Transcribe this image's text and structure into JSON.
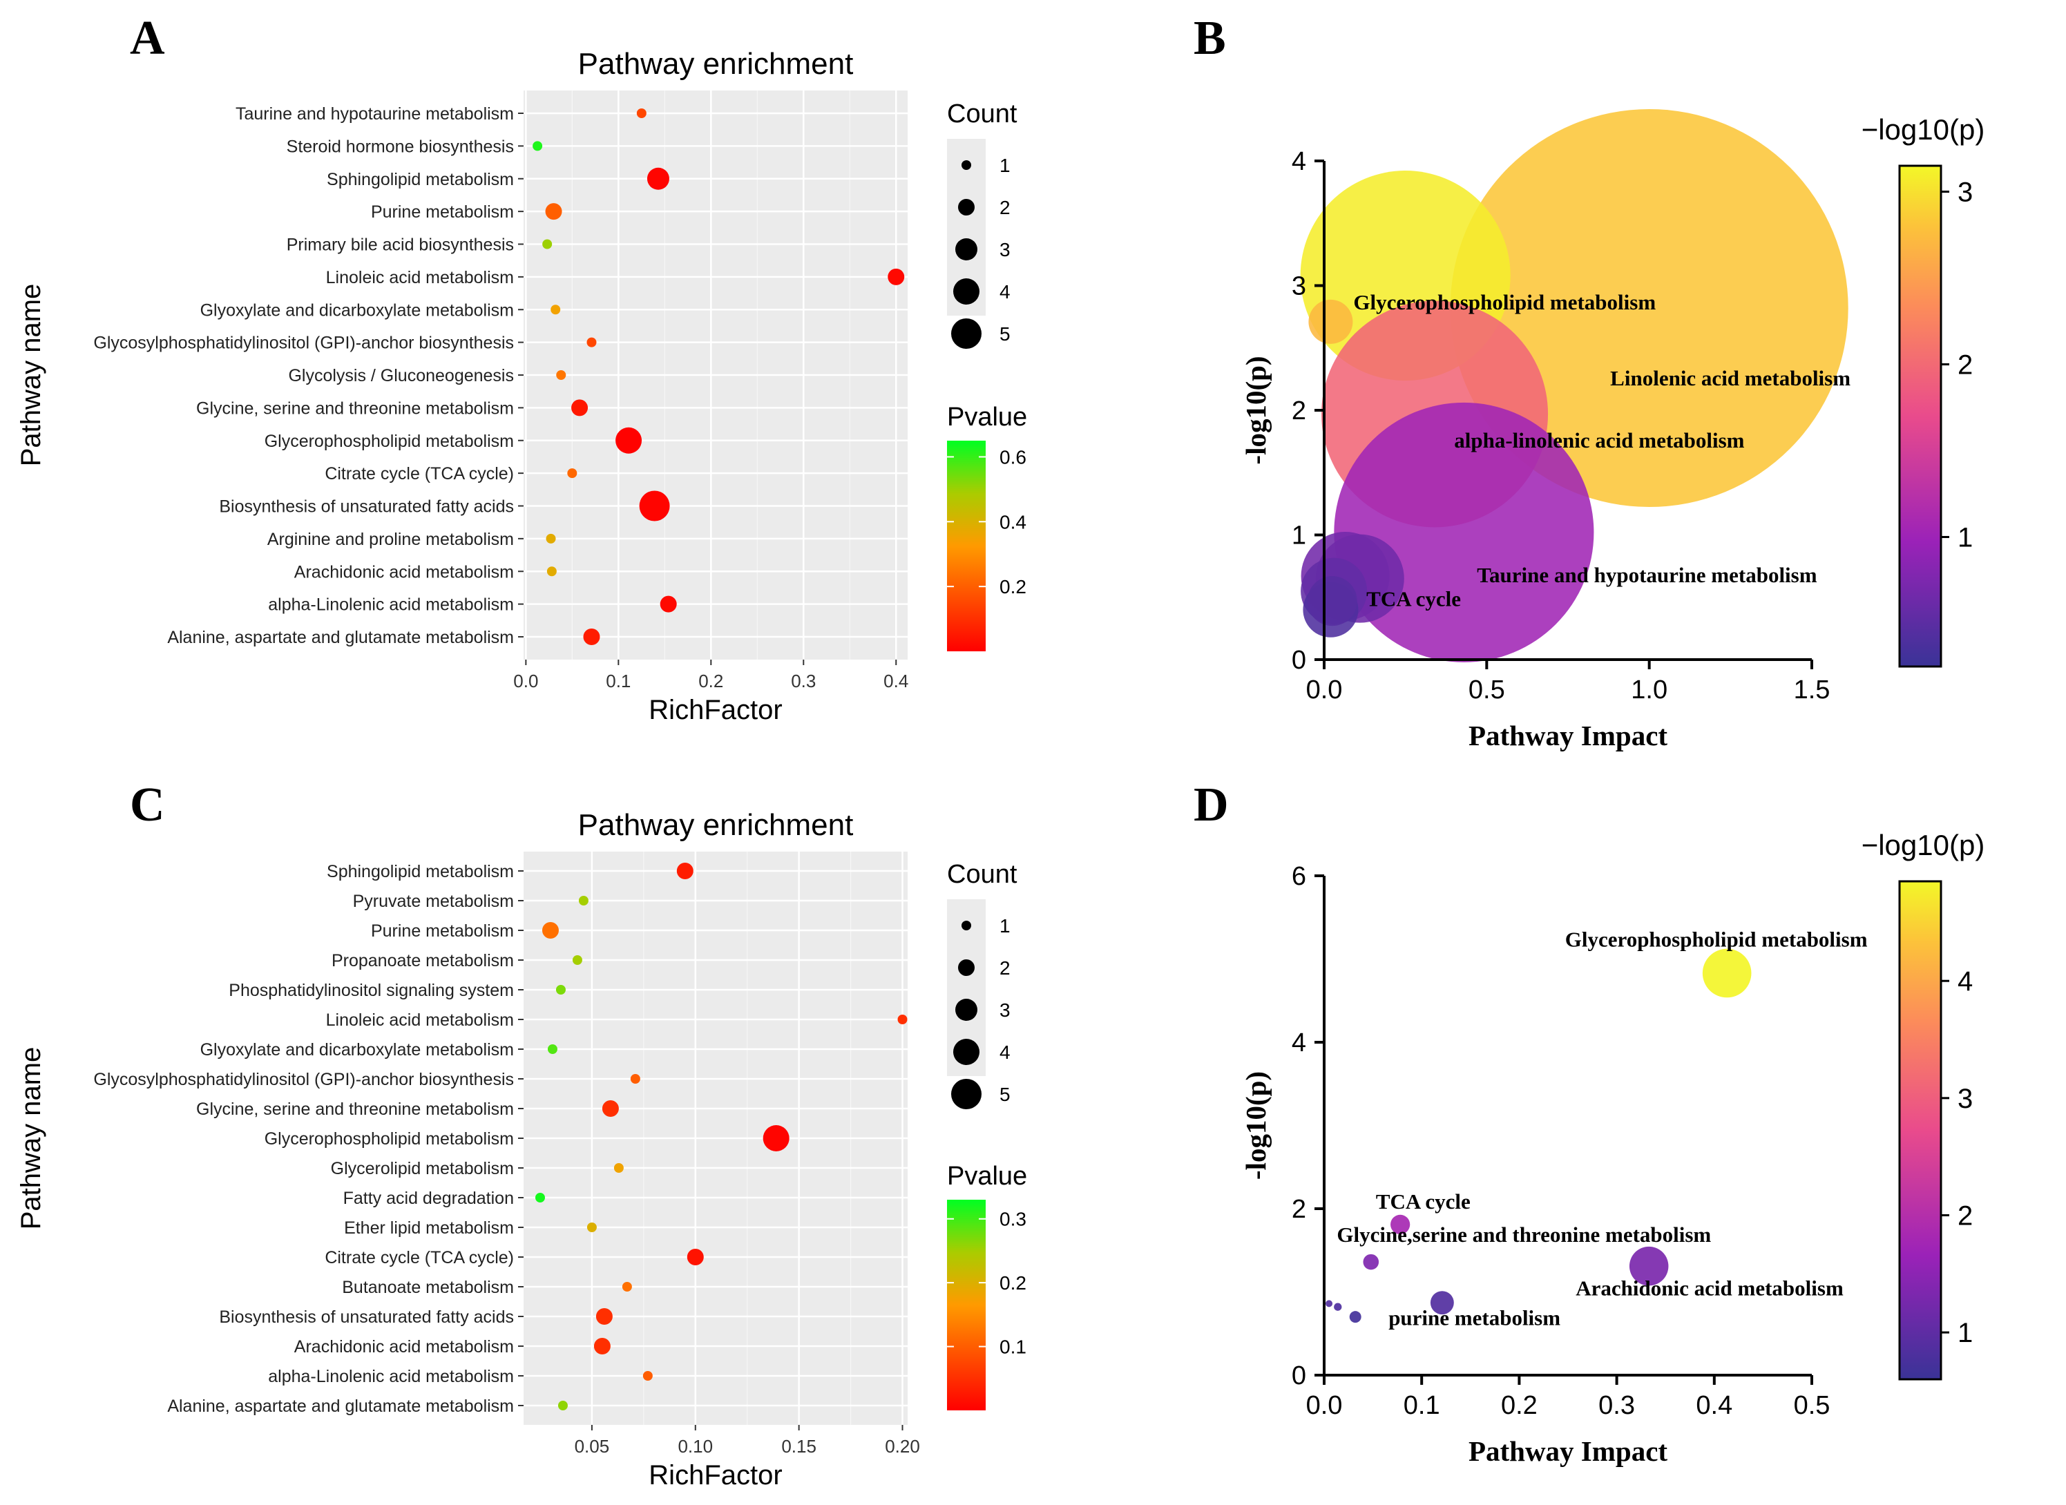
{
  "chart_data": [
    {
      "panel": "A",
      "type": "scatter",
      "title": "Pathway enrichment",
      "xlabel": "RichFactor",
      "ylabel": "Pathway name",
      "xlim": [
        -0.0025,
        0.4125
      ],
      "xticks": [
        0.0,
        0.1,
        0.2,
        0.3,
        0.4
      ],
      "xtick_labels": [
        "0.0",
        "0.1",
        "0.2",
        "0.3",
        "0.4"
      ],
      "size_legend": {
        "title": "Count",
        "values": [
          1,
          2,
          3,
          4,
          5
        ]
      },
      "color_legend": {
        "title": "Pvalue",
        "range": [
          0.0,
          0.65
        ],
        "ticks": [
          0.2,
          0.4,
          0.6
        ],
        "tick_labels": [
          "0.2",
          "0.4",
          "0.6"
        ],
        "low_color": "#ff0000",
        "high_color": "#00ff00"
      },
      "points": [
        {
          "name": "Taurine and hypotaurine metabolism",
          "x": 0.125,
          "count": 1,
          "p": 0.15
        },
        {
          "name": "Steroid hormone biosynthesis",
          "x": 0.0125,
          "count": 1,
          "p": 0.62
        },
        {
          "name": "Sphingolipid metabolism",
          "x": 0.143,
          "count": 3,
          "p": 0.01
        },
        {
          "name": "Purine metabolism",
          "x": 0.03,
          "count": 2,
          "p": 0.2
        },
        {
          "name": "Primary bile acid biosynthesis",
          "x": 0.023,
          "count": 1,
          "p": 0.5
        },
        {
          "name": "Linoleic acid metabolism",
          "x": 0.4,
          "count": 2,
          "p": 0.02
        },
        {
          "name": "Glyoxylate and dicarboxylate metabolism",
          "x": 0.032,
          "count": 1,
          "p": 0.35
        },
        {
          "name": "Glycosylphosphatidylinositol (GPI)-anchor biosynthesis",
          "x": 0.071,
          "count": 1,
          "p": 0.15
        },
        {
          "name": "Glycolysis / Gluconeogenesis",
          "x": 0.038,
          "count": 1,
          "p": 0.25
        },
        {
          "name": "Glycine, serine and threonine metabolism",
          "x": 0.058,
          "count": 2,
          "p": 0.05
        },
        {
          "name": "Glycerophospholipid metabolism",
          "x": 0.111,
          "count": 4,
          "p": 0.005
        },
        {
          "name": "Citrate cycle (TCA cycle)",
          "x": 0.05,
          "count": 1,
          "p": 0.22
        },
        {
          "name": "Biosynthesis of unsaturated fatty acids",
          "x": 0.139,
          "count": 5,
          "p": 0.008
        },
        {
          "name": "Arginine and proline metabolism",
          "x": 0.027,
          "count": 1,
          "p": 0.38
        },
        {
          "name": "Arachidonic acid metabolism",
          "x": 0.028,
          "count": 1,
          "p": 0.38
        },
        {
          "name": "alpha-Linolenic acid metabolism",
          "x": 0.154,
          "count": 2,
          "p": 0.02
        },
        {
          "name": "Alanine, aspartate and glutamate metabolism",
          "x": 0.071,
          "count": 2,
          "p": 0.06
        }
      ]
    },
    {
      "panel": "B",
      "type": "scatter",
      "title": "",
      "xlabel": "Pathway Impact",
      "ylabel": "-log10(p)",
      "xlim": [
        0,
        1.5
      ],
      "ylim": [
        0,
        4
      ],
      "xticks": [
        0.0,
        0.5,
        1.0,
        1.5
      ],
      "xtick_labels": [
        "0.0",
        "0.5",
        "1.0",
        "1.5"
      ],
      "yticks": [
        0,
        1,
        2,
        3,
        4
      ],
      "ytick_labels": [
        "0",
        "1",
        "2",
        "3",
        "4"
      ],
      "colorbar": {
        "title": "−log10(p)",
        "range": [
          0.25,
          3.15
        ],
        "ticks": [
          1,
          2,
          3
        ],
        "tick_labels": [
          "1",
          "2",
          "3"
        ]
      },
      "points": [
        {
          "x": 1.0,
          "y": 2.82,
          "r": 0.72
        },
        {
          "x": 0.25,
          "y": 3.08,
          "r": 0.38
        },
        {
          "x": 0.34,
          "y": 1.97,
          "r": 0.41
        },
        {
          "x": 0.43,
          "y": 1.02,
          "r": 0.47
        },
        {
          "x": 0.065,
          "y": 0.67,
          "r": 0.16
        },
        {
          "x": 0.11,
          "y": 0.65,
          "r": 0.16
        },
        {
          "x": 0.03,
          "y": 0.55,
          "r": 0.12
        },
        {
          "x": 0.02,
          "y": 0.4,
          "r": 0.1
        },
        {
          "x": 0.025,
          "y": 0.47,
          "r": 0.09
        },
        {
          "x": 0.02,
          "y": 2.71,
          "r": 0.08
        }
      ],
      "annotations": [
        {
          "text": "Glycerophospholipid metabolism",
          "x": 0.09,
          "y": 2.81
        },
        {
          "text": "Linolenic acid metabolism",
          "x": 0.88,
          "y": 2.2
        },
        {
          "text": "alpha-linolenic acid metabolism",
          "x": 0.4,
          "y": 1.7
        },
        {
          "text": "Taurine and hypotaurine metabolism",
          "x": 0.47,
          "y": 0.62
        },
        {
          "text": "TCA cycle",
          "x": 0.13,
          "y": 0.43
        }
      ]
    },
    {
      "panel": "C",
      "type": "scatter",
      "title": "Pathway enrichment",
      "xlabel": "RichFactor",
      "ylabel": "Pathway name",
      "xlim": [
        0.017,
        0.2025
      ],
      "xticks": [
        0.05,
        0.1,
        0.15,
        0.2
      ],
      "xtick_labels": [
        "0.05",
        "0.10",
        "0.15",
        "0.20"
      ],
      "size_legend": {
        "title": "Count",
        "values": [
          1,
          2,
          3,
          4,
          5
        ]
      },
      "color_legend": {
        "title": "Pvalue",
        "range": [
          0.0,
          0.33
        ],
        "ticks": [
          0.1,
          0.2,
          0.3
        ],
        "tick_labels": [
          "0.1",
          "0.2",
          "0.3"
        ],
        "low_color": "#ff0000",
        "high_color": "#00ff00"
      },
      "points": [
        {
          "name": "Sphingolipid metabolism",
          "x": 0.095,
          "count": 2,
          "p": 0.03
        },
        {
          "name": "Pyruvate metabolism",
          "x": 0.046,
          "count": 1,
          "p": 0.25
        },
        {
          "name": "Purine metabolism",
          "x": 0.03,
          "count": 2,
          "p": 0.12
        },
        {
          "name": "Propanoate metabolism",
          "x": 0.043,
          "count": 1,
          "p": 0.25
        },
        {
          "name": "Phosphatidylinositol signaling system",
          "x": 0.035,
          "count": 1,
          "p": 0.27
        },
        {
          "name": "Linoleic acid metabolism",
          "x": 0.2,
          "count": 1,
          "p": 0.05
        },
        {
          "name": "Glyoxylate and dicarboxylate metabolism",
          "x": 0.031,
          "count": 1,
          "p": 0.29
        },
        {
          "name": "Glycosylphosphatidylinositol (GPI)-anchor biosynthesis",
          "x": 0.071,
          "count": 1,
          "p": 0.1
        },
        {
          "name": "Glycine, serine and threonine metabolism",
          "x": 0.059,
          "count": 2,
          "p": 0.05
        },
        {
          "name": "Glycerophospholipid metabolism",
          "x": 0.139,
          "count": 4,
          "p": 0.005
        },
        {
          "name": "Glycerolipid metabolism",
          "x": 0.063,
          "count": 1,
          "p": 0.18
        },
        {
          "name": "Fatty acid degradation",
          "x": 0.025,
          "count": 1,
          "p": 0.32
        },
        {
          "name": "Ether lipid metabolism",
          "x": 0.05,
          "count": 1,
          "p": 0.2
        },
        {
          "name": "Citrate cycle (TCA cycle)",
          "x": 0.1,
          "count": 2,
          "p": 0.02
        },
        {
          "name": "Butanoate metabolism",
          "x": 0.067,
          "count": 1,
          "p": 0.12
        },
        {
          "name": "Biosynthesis of unsaturated fatty acids",
          "x": 0.056,
          "count": 2,
          "p": 0.05
        },
        {
          "name": "Arachidonic acid metabolism",
          "x": 0.055,
          "count": 2,
          "p": 0.05
        },
        {
          "name": "alpha-Linolenic acid metabolism",
          "x": 0.077,
          "count": 1,
          "p": 0.1
        },
        {
          "name": "Alanine, aspartate and glutamate metabolism",
          "x": 0.036,
          "count": 1,
          "p": 0.26
        }
      ]
    },
    {
      "panel": "D",
      "type": "scatter",
      "title": "",
      "xlabel": "Pathway Impact",
      "ylabel": "-log10(p)",
      "xlim": [
        0,
        0.5
      ],
      "ylim": [
        0,
        6
      ],
      "xticks": [
        0.0,
        0.1,
        0.2,
        0.3,
        0.4,
        0.5
      ],
      "xtick_labels": [
        "0.0",
        "0.1",
        "0.2",
        "0.3",
        "0.4",
        "0.5"
      ],
      "yticks": [
        0,
        2,
        4,
        6
      ],
      "ytick_labels": [
        "0",
        "2",
        "4",
        "6"
      ],
      "colorbar": {
        "title": "−log10(p)",
        "range": [
          0.6,
          4.85
        ],
        "ticks": [
          1,
          2,
          3,
          4
        ],
        "tick_labels": [
          "1",
          "2",
          "3",
          "4"
        ]
      },
      "points": [
        {
          "x": 0.413,
          "y": 4.83,
          "r": 0.025
        },
        {
          "x": 0.333,
          "y": 1.31,
          "r": 0.02
        },
        {
          "x": 0.078,
          "y": 1.81,
          "r": 0.01
        },
        {
          "x": 0.048,
          "y": 1.36,
          "r": 0.008
        },
        {
          "x": 0.121,
          "y": 0.87,
          "r": 0.012
        },
        {
          "x": 0.032,
          "y": 0.7,
          "r": 0.006
        },
        {
          "x": 0.014,
          "y": 0.82,
          "r": 0.004
        },
        {
          "x": 0.005,
          "y": 0.86,
          "r": 0.003
        }
      ],
      "annotations": [
        {
          "text": "Glycerophospholipid metabolism",
          "x": 0.247,
          "y": 5.15
        },
        {
          "text": "TCA cycle",
          "x": 0.053,
          "y": 2.0
        },
        {
          "text": "Glycine,serine and threonine metabolism",
          "x": 0.013,
          "y": 1.6
        },
        {
          "text": "Arachidonic acid metabolism",
          "x": 0.258,
          "y": 0.96
        },
        {
          "text": "purine metabolism",
          "x": 0.066,
          "y": 0.6
        }
      ]
    }
  ],
  "panel_labels": [
    "A",
    "B",
    "C",
    "D"
  ]
}
